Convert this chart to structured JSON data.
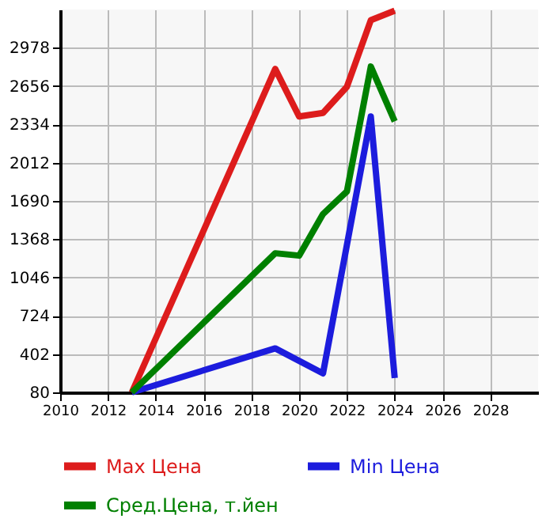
{
  "chart_data": {
    "type": "line",
    "xlim": [
      2010,
      2030
    ],
    "xticks": [
      2010,
      2012,
      2014,
      2016,
      2018,
      2020,
      2022,
      2024,
      2026,
      2028
    ],
    "ylim": [
      80,
      3300
    ],
    "yticks": [
      80,
      402,
      724,
      1046,
      1368,
      1690,
      2012,
      2334,
      2656,
      2978
    ],
    "grid": true,
    "legend": "bottom",
    "line_style": "solid",
    "marker": "none",
    "series": [
      {
        "name": "Max Цена",
        "color": "#dd1c1c",
        "x": [
          2013,
          2019,
          2020,
          2021,
          2022,
          2023,
          2024
        ],
        "values": [
          80,
          2800,
          2400,
          2430,
          2650,
          3210,
          3290
        ]
      },
      {
        "name": "Min Цена",
        "color": "#1c1cdd",
        "x": [
          2013,
          2019,
          2021,
          2023,
          2024
        ],
        "values": [
          80,
          450,
          240,
          2400,
          200
        ]
      },
      {
        "name": "Сред.Цена, т.йен",
        "color": "#008000",
        "x": [
          2013,
          2019,
          2020,
          2021,
          2022,
          2023,
          2024
        ],
        "values": [
          80,
          1250,
          1230,
          1580,
          1770,
          2820,
          2360
        ]
      }
    ]
  }
}
